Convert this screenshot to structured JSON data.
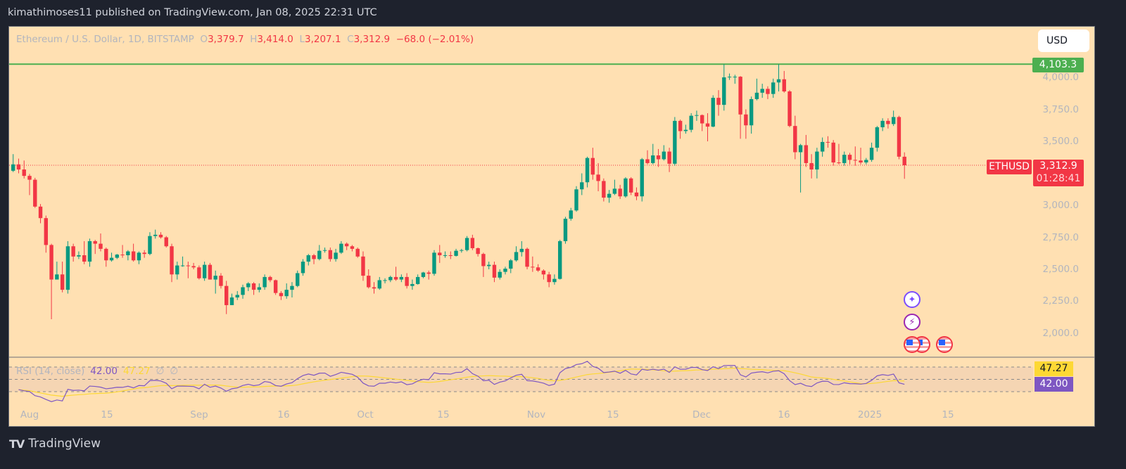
{
  "header": {
    "published": "kimathimoses11 published on TradingView.com, Jan 08, 2025 22:31 UTC"
  },
  "legend": {
    "symbol": "Ethereum / U.S. Dollar, 1D, BITSTAMP",
    "o_label": "O",
    "o": "3,379.7",
    "h_label": "H",
    "h": "3,414.0",
    "l_label": "L",
    "l": "3,207.1",
    "c_label": "C",
    "c": "3,312.9",
    "change": "−68.0 (−2.01%)"
  },
  "currency_button": "USD",
  "price_axis": {
    "ticks": [
      "4,000.0",
      "3,750.0",
      "3,500.0",
      "3,000.0",
      "2,750.0",
      "2,500.0",
      "2,250.0",
      "2,000.0"
    ],
    "horizontal_line_label": "4,103.3",
    "symbol_label": "ETHUSD",
    "last_price": "3,312.9",
    "countdown": "01:28:41"
  },
  "rsi": {
    "label": "RSI (14, close)",
    "value": "42.00",
    "ma_value": "47.27",
    "extra1": "∅",
    "extra2": "∅",
    "levels": [
      70,
      50,
      30
    ]
  },
  "time_axis": [
    "Aug",
    "15",
    "Sep",
    "16",
    "Oct",
    "15",
    "Nov",
    "15",
    "Dec",
    "16",
    "2025",
    "15"
  ],
  "events": [
    "crypto-event-icon",
    "lightning-event-icon",
    "us-flag-event-icon",
    "us-flag-event-icon",
    "us-flag-event-icon"
  ],
  "footer": {
    "brand": "TradingView"
  },
  "colors": {
    "up": "#089981",
    "down": "#f23645",
    "background": "#ffe0b2",
    "hline": "#4caf50",
    "rsi": "#7e57c2",
    "rsi_ma": "#fdd835"
  },
  "chart_data": {
    "type": "candlestick",
    "symbol": "ETHUSD",
    "interval": "1D",
    "ylim": [
      1900,
      4300
    ],
    "horizontal_line": 4103.3,
    "grid": false,
    "candles_fields": [
      "date",
      "open",
      "high",
      "low",
      "close"
    ],
    "candles": [
      [
        "2024-07-29",
        3270,
        3400,
        3260,
        3320
      ],
      [
        "2024-07-30",
        3320,
        3365,
        3250,
        3280
      ],
      [
        "2024-07-31",
        3280,
        3350,
        3210,
        3230
      ],
      [
        "2024-08-01",
        3230,
        3245,
        3080,
        3200
      ],
      [
        "2024-08-02",
        3200,
        3215,
        2980,
        2990
      ],
      [
        "2024-08-03",
        2990,
        3010,
        2860,
        2900
      ],
      [
        "2024-08-04",
        2900,
        2920,
        2630,
        2690
      ],
      [
        "2024-08-05",
        2690,
        2700,
        2110,
        2420
      ],
      [
        "2024-08-06",
        2420,
        2560,
        2420,
        2460
      ],
      [
        "2024-08-07",
        2460,
        2560,
        2320,
        2340
      ],
      [
        "2024-08-08",
        2340,
        2720,
        2310,
        2680
      ],
      [
        "2024-08-09",
        2680,
        2700,
        2560,
        2600
      ],
      [
        "2024-08-10",
        2600,
        2640,
        2580,
        2610
      ],
      [
        "2024-08-11",
        2610,
        2720,
        2540,
        2560
      ],
      [
        "2024-08-12",
        2560,
        2740,
        2520,
        2720
      ],
      [
        "2024-08-13",
        2720,
        2730,
        2620,
        2700
      ],
      [
        "2024-08-14",
        2700,
        2780,
        2640,
        2660
      ],
      [
        "2024-08-15",
        2660,
        2670,
        2520,
        2570
      ],
      [
        "2024-08-16",
        2570,
        2630,
        2560,
        2590
      ],
      [
        "2024-08-17",
        2590,
        2620,
        2580,
        2615
      ],
      [
        "2024-08-18",
        2615,
        2690,
        2590,
        2610
      ],
      [
        "2024-08-19",
        2610,
        2650,
        2570,
        2640
      ],
      [
        "2024-08-20",
        2640,
        2700,
        2560,
        2570
      ],
      [
        "2024-08-21",
        2570,
        2640,
        2540,
        2630
      ],
      [
        "2024-08-22",
        2630,
        2650,
        2590,
        2620
      ],
      [
        "2024-08-23",
        2620,
        2790,
        2610,
        2760
      ],
      [
        "2024-08-24",
        2760,
        2810,
        2740,
        2770
      ],
      [
        "2024-08-25",
        2770,
        2790,
        2740,
        2750
      ],
      [
        "2024-08-26",
        2750,
        2760,
        2670,
        2680
      ],
      [
        "2024-08-27",
        2680,
        2700,
        2400,
        2460
      ],
      [
        "2024-08-28",
        2460,
        2560,
        2420,
        2530
      ],
      [
        "2024-08-29",
        2530,
        2600,
        2520,
        2530
      ],
      [
        "2024-08-30",
        2530,
        2560,
        2430,
        2525
      ],
      [
        "2024-08-31",
        2525,
        2550,
        2500,
        2515
      ],
      [
        "2024-09-01",
        2515,
        2530,
        2420,
        2430
      ],
      [
        "2024-09-02",
        2430,
        2560,
        2410,
        2535
      ],
      [
        "2024-09-03",
        2535,
        2550,
        2420,
        2420
      ],
      [
        "2024-09-04",
        2420,
        2490,
        2310,
        2450
      ],
      [
        "2024-09-05",
        2450,
        2470,
        2350,
        2370
      ],
      [
        "2024-09-06",
        2370,
        2410,
        2150,
        2220
      ],
      [
        "2024-09-07",
        2220,
        2310,
        2220,
        2280
      ],
      [
        "2024-09-08",
        2280,
        2330,
        2260,
        2300
      ],
      [
        "2024-09-09",
        2300,
        2380,
        2270,
        2360
      ],
      [
        "2024-09-10",
        2360,
        2400,
        2330,
        2390
      ],
      [
        "2024-09-11",
        2390,
        2400,
        2300,
        2340
      ],
      [
        "2024-09-12",
        2340,
        2390,
        2320,
        2360
      ],
      [
        "2024-09-13",
        2360,
        2460,
        2340,
        2440
      ],
      [
        "2024-09-14",
        2440,
        2450,
        2400,
        2415
      ],
      [
        "2024-09-15",
        2415,
        2420,
        2300,
        2315
      ],
      [
        "2024-09-16",
        2315,
        2330,
        2260,
        2290
      ],
      [
        "2024-09-17",
        2290,
        2390,
        2270,
        2340
      ],
      [
        "2024-09-18",
        2340,
        2400,
        2280,
        2370
      ],
      [
        "2024-09-19",
        2370,
        2490,
        2360,
        2470
      ],
      [
        "2024-09-20",
        2470,
        2580,
        2450,
        2560
      ],
      [
        "2024-09-21",
        2560,
        2620,
        2530,
        2610
      ],
      [
        "2024-09-22",
        2610,
        2620,
        2540,
        2580
      ],
      [
        "2024-09-23",
        2580,
        2690,
        2570,
        2645
      ],
      [
        "2024-09-24",
        2645,
        2670,
        2630,
        2650
      ],
      [
        "2024-09-25",
        2650,
        2670,
        2560,
        2580
      ],
      [
        "2024-09-26",
        2580,
        2660,
        2560,
        2630
      ],
      [
        "2024-09-27",
        2630,
        2720,
        2620,
        2700
      ],
      [
        "2024-09-28",
        2700,
        2710,
        2650,
        2680
      ],
      [
        "2024-09-29",
        2680,
        2690,
        2640,
        2660
      ],
      [
        "2024-09-30",
        2660,
        2670,
        2590,
        2600
      ],
      [
        "2024-10-01",
        2600,
        2640,
        2410,
        2450
      ],
      [
        "2024-10-02",
        2450,
        2500,
        2350,
        2360
      ],
      [
        "2024-10-03",
        2360,
        2400,
        2310,
        2350
      ],
      [
        "2024-10-04",
        2350,
        2440,
        2340,
        2415
      ],
      [
        "2024-10-05",
        2415,
        2430,
        2390,
        2415
      ],
      [
        "2024-10-06",
        2415,
        2450,
        2400,
        2440
      ],
      [
        "2024-10-07",
        2440,
        2520,
        2410,
        2420
      ],
      [
        "2024-10-08",
        2420,
        2460,
        2400,
        2440
      ],
      [
        "2024-10-09",
        2440,
        2470,
        2350,
        2370
      ],
      [
        "2024-10-10",
        2370,
        2420,
        2340,
        2385
      ],
      [
        "2024-10-11",
        2385,
        2460,
        2380,
        2440
      ],
      [
        "2024-10-12",
        2440,
        2480,
        2430,
        2475
      ],
      [
        "2024-10-13",
        2475,
        2490,
        2420,
        2465
      ],
      [
        "2024-10-14",
        2465,
        2650,
        2450,
        2630
      ],
      [
        "2024-10-15",
        2630,
        2690,
        2550,
        2610
      ],
      [
        "2024-10-16",
        2610,
        2640,
        2590,
        2610
      ],
      [
        "2024-10-17",
        2610,
        2640,
        2580,
        2605
      ],
      [
        "2024-10-18",
        2605,
        2660,
        2600,
        2645
      ],
      [
        "2024-10-19",
        2645,
        2660,
        2630,
        2650
      ],
      [
        "2024-10-20",
        2650,
        2760,
        2640,
        2745
      ],
      [
        "2024-10-21",
        2745,
        2770,
        2650,
        2665
      ],
      [
        "2024-10-22",
        2665,
        2670,
        2600,
        2620
      ],
      [
        "2024-10-23",
        2620,
        2630,
        2440,
        2525
      ],
      [
        "2024-10-24",
        2525,
        2560,
        2500,
        2535
      ],
      [
        "2024-10-25",
        2535,
        2560,
        2400,
        2435
      ],
      [
        "2024-10-26",
        2435,
        2500,
        2420,
        2480
      ],
      [
        "2024-10-27",
        2480,
        2520,
        2460,
        2505
      ],
      [
        "2024-10-28",
        2505,
        2580,
        2470,
        2570
      ],
      [
        "2024-10-29",
        2570,
        2680,
        2560,
        2635
      ],
      [
        "2024-10-30",
        2635,
        2720,
        2600,
        2660
      ],
      [
        "2024-10-31",
        2660,
        2670,
        2500,
        2520
      ],
      [
        "2024-11-01",
        2520,
        2600,
        2480,
        2515
      ],
      [
        "2024-11-02",
        2515,
        2540,
        2480,
        2490
      ],
      [
        "2024-11-03",
        2490,
        2500,
        2420,
        2460
      ],
      [
        "2024-11-04",
        2460,
        2480,
        2360,
        2400
      ],
      [
        "2024-11-05",
        2400,
        2460,
        2380,
        2425
      ],
      [
        "2024-11-06",
        2425,
        2730,
        2420,
        2720
      ],
      [
        "2024-11-07",
        2720,
        2910,
        2700,
        2895
      ],
      [
        "2024-11-08",
        2895,
        2980,
        2880,
        2960
      ],
      [
        "2024-11-09",
        2960,
        3150,
        2950,
        3125
      ],
      [
        "2024-11-10",
        3125,
        3250,
        3080,
        3180
      ],
      [
        "2024-11-11",
        3180,
        3380,
        3140,
        3370
      ],
      [
        "2024-11-12",
        3370,
        3450,
        3200,
        3240
      ],
      [
        "2024-11-13",
        3240,
        3330,
        3110,
        3190
      ],
      [
        "2024-11-14",
        3190,
        3210,
        3030,
        3060
      ],
      [
        "2024-11-15",
        3060,
        3120,
        3020,
        3090
      ],
      [
        "2024-11-16",
        3090,
        3200,
        3080,
        3130
      ],
      [
        "2024-11-17",
        3130,
        3160,
        3050,
        3070
      ],
      [
        "2024-11-18",
        3070,
        3220,
        3060,
        3210
      ],
      [
        "2024-11-19",
        3210,
        3220,
        3080,
        3100
      ],
      [
        "2024-11-20",
        3100,
        3140,
        3040,
        3070
      ],
      [
        "2024-11-21",
        3070,
        3370,
        3030,
        3360
      ],
      [
        "2024-11-22",
        3360,
        3430,
        3320,
        3330
      ],
      [
        "2024-11-23",
        3330,
        3480,
        3320,
        3390
      ],
      [
        "2024-11-24",
        3390,
        3440,
        3300,
        3360
      ],
      [
        "2024-11-25",
        3360,
        3470,
        3350,
        3420
      ],
      [
        "2024-11-26",
        3420,
        3450,
        3260,
        3325
      ],
      [
        "2024-11-27",
        3325,
        3690,
        3310,
        3660
      ],
      [
        "2024-11-28",
        3660,
        3670,
        3520,
        3580
      ],
      [
        "2024-11-29",
        3580,
        3630,
        3560,
        3590
      ],
      [
        "2024-11-30",
        3590,
        3720,
        3570,
        3700
      ],
      [
        "2024-12-01",
        3700,
        3740,
        3660,
        3705
      ],
      [
        "2024-12-02",
        3705,
        3710,
        3580,
        3640
      ],
      [
        "2024-12-03",
        3640,
        3720,
        3500,
        3615
      ],
      [
        "2024-12-04",
        3615,
        3860,
        3610,
        3840
      ],
      [
        "2024-12-05",
        3840,
        3900,
        3700,
        3785
      ],
      [
        "2024-12-06",
        3785,
        4103,
        3740,
        4000
      ],
      [
        "2024-12-07",
        4000,
        4030,
        3980,
        4005
      ],
      [
        "2024-12-08",
        4005,
        4020,
        3950,
        4005
      ],
      [
        "2024-12-09",
        4005,
        4010,
        3520,
        3710
      ],
      [
        "2024-12-10",
        3710,
        3750,
        3520,
        3625
      ],
      [
        "2024-12-11",
        3625,
        3850,
        3560,
        3830
      ],
      [
        "2024-12-12",
        3830,
        3990,
        3820,
        3880
      ],
      [
        "2024-12-13",
        3880,
        3950,
        3840,
        3910
      ],
      [
        "2024-12-14",
        3910,
        3930,
        3830,
        3870
      ],
      [
        "2024-12-15",
        3870,
        3990,
        3840,
        3960
      ],
      [
        "2024-12-16",
        3960,
        4103,
        3890,
        3985
      ],
      [
        "2024-12-17",
        3985,
        4050,
        3880,
        3890
      ],
      [
        "2024-12-18",
        3890,
        3900,
        3610,
        3620
      ],
      [
        "2024-12-19",
        3620,
        3700,
        3360,
        3415
      ],
      [
        "2024-12-20",
        3415,
        3480,
        3100,
        3470
      ],
      [
        "2024-12-21",
        3470,
        3550,
        3300,
        3330
      ],
      [
        "2024-12-22",
        3330,
        3400,
        3210,
        3280
      ],
      [
        "2024-12-23",
        3280,
        3450,
        3210,
        3420
      ],
      [
        "2024-12-24",
        3420,
        3530,
        3380,
        3495
      ],
      [
        "2024-12-25",
        3495,
        3540,
        3450,
        3490
      ],
      [
        "2024-12-26",
        3490,
        3510,
        3310,
        3335
      ],
      [
        "2024-12-27",
        3335,
        3480,
        3320,
        3330
      ],
      [
        "2024-12-28",
        3330,
        3420,
        3310,
        3395
      ],
      [
        "2024-12-29",
        3395,
        3410,
        3320,
        3355
      ],
      [
        "2024-12-30",
        3355,
        3460,
        3310,
        3350
      ],
      [
        "2024-12-31",
        3350,
        3450,
        3320,
        3335
      ],
      [
        "2025-01-01",
        3335,
        3370,
        3320,
        3355
      ],
      [
        "2025-01-02",
        3355,
        3490,
        3340,
        3450
      ],
      [
        "2025-01-03",
        3450,
        3620,
        3420,
        3610
      ],
      [
        "2025-01-04",
        3610,
        3680,
        3580,
        3660
      ],
      [
        "2025-01-05",
        3660,
        3680,
        3600,
        3635
      ],
      [
        "2025-01-06",
        3635,
        3740,
        3620,
        3690
      ],
      [
        "2025-01-07",
        3690,
        3700,
        3360,
        3380
      ],
      [
        "2025-01-08",
        3379.7,
        3414.0,
        3207.1,
        3312.9
      ]
    ]
  }
}
